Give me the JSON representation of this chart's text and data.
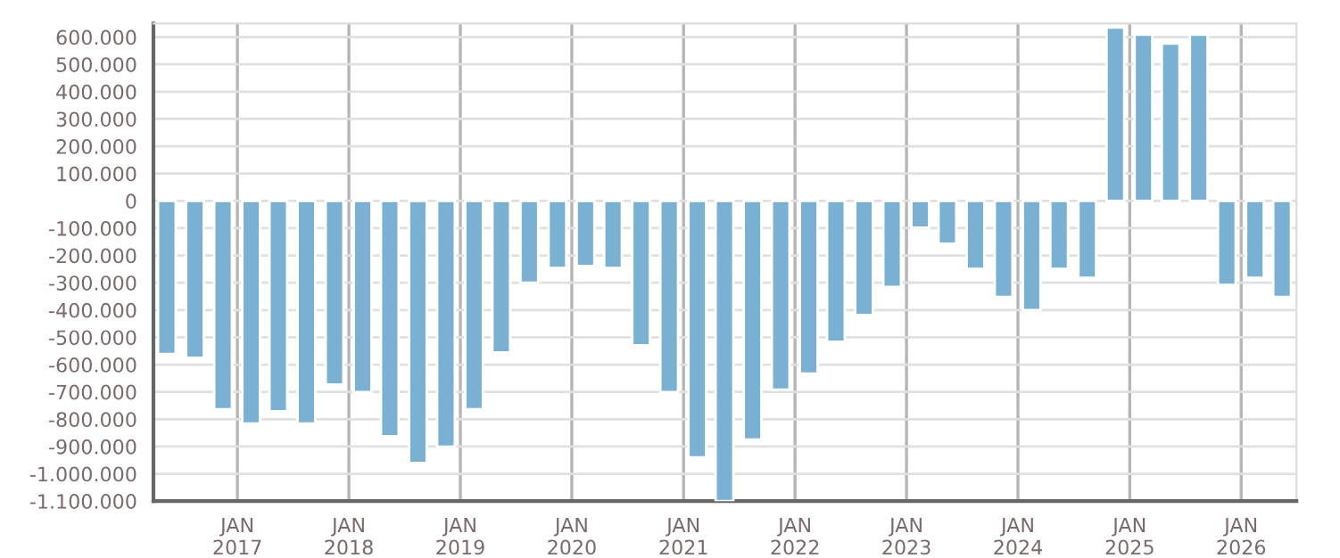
{
  "chart_data": {
    "type": "bar",
    "color": "#7ab1d3",
    "x": [
      "2016-05-15",
      "2016-08-15",
      "2016-11-15",
      "2017-02-15",
      "2017-05-15",
      "2017-08-15",
      "2017-11-15",
      "2018-02-15",
      "2018-05-15",
      "2018-08-15",
      "2018-11-15",
      "2019-02-15",
      "2019-05-15",
      "2019-08-15",
      "2019-11-15",
      "2020-02-15",
      "2020-05-15",
      "2020-08-15",
      "2020-11-15",
      "2021-02-15",
      "2021-05-15",
      "2021-08-15",
      "2021-11-15",
      "2022-02-15",
      "2022-05-15",
      "2022-08-15",
      "2022-11-15",
      "2023-02-15",
      "2023-05-15",
      "2023-08-15",
      "2023-11-15",
      "2024-02-15",
      "2024-05-15",
      "2024-08-15",
      "2024-11-15",
      "2025-02-15",
      "2025-05-15",
      "2025-08-15",
      "2025-11-15",
      "2026-02-15",
      "2026-05-15"
    ],
    "values": [
      -561000,
      -575000,
      -764000,
      -816000,
      -771000,
      -816000,
      -673000,
      -701000,
      -862000,
      -960000,
      -901000,
      -764000,
      -555000,
      -300000,
      -246000,
      -239000,
      -246000,
      -529000,
      -701000,
      -940000,
      -1100000,
      -875000,
      -692000,
      -633000,
      -516000,
      -418000,
      -315000,
      -98000,
      -157000,
      -249000,
      -352000,
      -400000,
      -249000,
      -282000,
      635000,
      609000,
      576000,
      609000,
      -308000,
      -282000,
      -352000
    ],
    "xlim": [
      "2016-04-01",
      "2026-07-01"
    ],
    "xticks": [
      {
        "value": "2017-01-01",
        "label": "JAN\n2017"
      },
      {
        "value": "2018-01-01",
        "label": "JAN\n2018"
      },
      {
        "value": "2019-01-01",
        "label": "JAN\n2019"
      },
      {
        "value": "2020-01-01",
        "label": "JAN\n2020"
      },
      {
        "value": "2021-01-01",
        "label": "JAN\n2021"
      },
      {
        "value": "2022-01-01",
        "label": "JAN\n2022"
      },
      {
        "value": "2023-01-01",
        "label": "JAN\n2023"
      },
      {
        "value": "2024-01-01",
        "label": "JAN\n2024"
      },
      {
        "value": "2025-01-01",
        "label": "JAN\n2025"
      },
      {
        "value": "2026-01-01",
        "label": "JAN\n2026"
      }
    ],
    "ylim": [
      -1100000,
      650000
    ],
    "yticks": [
      {
        "value": 600000,
        "label": "600.000"
      },
      {
        "value": 500000,
        "label": "500.000"
      },
      {
        "value": 400000,
        "label": "400.000"
      },
      {
        "value": 300000,
        "label": "300.000"
      },
      {
        "value": 200000,
        "label": "200.000"
      },
      {
        "value": 100000,
        "label": "100.000"
      },
      0,
      {
        "value": -100000,
        "label": "-100.000"
      },
      {
        "value": -200000,
        "label": "-200.000"
      },
      {
        "value": -300000,
        "label": "-300.000"
      },
      {
        "value": -400000,
        "label": "-400.000"
      },
      {
        "value": -500000,
        "label": "-500.000"
      },
      {
        "value": -600000,
        "label": "-600.000"
      },
      {
        "value": -700000,
        "label": "-700.000"
      },
      {
        "value": -800000,
        "label": "-800.000"
      },
      {
        "value": -900000,
        "label": "-900.000"
      },
      {
        "value": -1000000,
        "label": "-1.000.000"
      },
      {
        "value": -1100000,
        "label": "-1.100.000"
      }
    ],
    "grid": true
  }
}
